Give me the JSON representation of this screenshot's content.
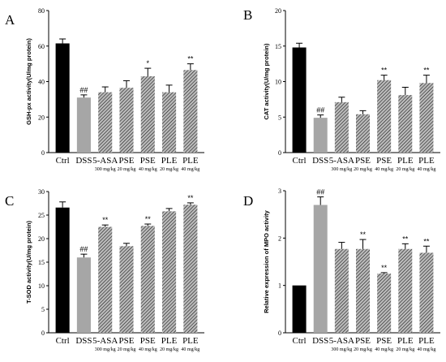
{
  "chart_data": [
    {
      "type": "bar",
      "panel_label": "A",
      "ylabel": "GSH-px activity(U/mg protein)",
      "ylim": [
        0,
        80
      ],
      "yticks": [
        0,
        20,
        40,
        60,
        80
      ],
      "categories": [
        "Ctrl",
        "DSS",
        "5-ASA",
        "PSE",
        "PSE",
        "PLE",
        "PLE"
      ],
      "doses": [
        "",
        "",
        "300 mg/kg",
        "20 mg/kg",
        "40 mg/kg",
        "20 mg/kg",
        "40 mg/kg"
      ],
      "values": [
        61.5,
        31,
        34,
        36.5,
        43,
        34,
        46.5
      ],
      "errors": [
        2.5,
        1.5,
        3,
        4,
        4.5,
        4,
        3.5
      ],
      "significance": [
        "",
        "##",
        "",
        "",
        "*",
        "",
        "**"
      ]
    },
    {
      "type": "bar",
      "panel_label": "B",
      "ylabel": "CAT activity(U/mg protein)",
      "ylim": [
        0,
        20
      ],
      "yticks": [
        0,
        5,
        10,
        15,
        20
      ],
      "categories": [
        "Ctrl",
        "DSS",
        "5-ASA",
        "PSE",
        "PSE",
        "PLE",
        "PLE"
      ],
      "doses": [
        "",
        "",
        "300 mg/kg",
        "20 mg/kg",
        "40 mg/kg",
        "20 mg/kg",
        "40 mg/kg"
      ],
      "values": [
        14.8,
        4.9,
        7.1,
        5.4,
        10.2,
        8.1,
        9.8
      ],
      "errors": [
        0.6,
        0.4,
        0.7,
        0.5,
        0.7,
        1.1,
        1.1
      ],
      "significance": [
        "",
        "##",
        "",
        "",
        "**",
        "",
        "**"
      ]
    },
    {
      "type": "bar",
      "panel_label": "C",
      "ylabel": "T-SOD activity(U/mg protein)",
      "ylim": [
        0,
        30
      ],
      "yticks": [
        0,
        5,
        10,
        15,
        20,
        25,
        30
      ],
      "categories": [
        "Ctrl",
        "DSS",
        "5-ASA",
        "PSE",
        "PSE",
        "PLE",
        "PLE"
      ],
      "doses": [
        "",
        "",
        "300 mg/kg",
        "20 mg/kg",
        "40 mg/kg",
        "20 mg/kg",
        "40 mg/kg"
      ],
      "values": [
        26.6,
        16,
        22.5,
        18.4,
        22.7,
        25.8,
        27.2
      ],
      "errors": [
        1.2,
        0.7,
        0.4,
        0.6,
        0.4,
        0.6,
        0.4
      ],
      "significance": [
        "",
        "##",
        "**",
        "",
        "**",
        "",
        "**"
      ]
    },
    {
      "type": "bar",
      "panel_label": "D",
      "ylabel": "Relative expression of MPO activity",
      "ylim": [
        0,
        3
      ],
      "yticks": [
        0,
        1,
        2,
        3
      ],
      "categories": [
        "Ctrl",
        "DSS",
        "5-ASA",
        "PSE",
        "PSE",
        "PLE",
        "PLE"
      ],
      "doses": [
        "",
        "",
        "300 mg/kg",
        "20 mg/kg",
        "40 mg/kg",
        "20 mg/kg",
        "40 mg/kg"
      ],
      "values": [
        1.0,
        2.7,
        1.77,
        1.77,
        1.25,
        1.77,
        1.69
      ],
      "errors": [
        0,
        0.17,
        0.14,
        0.2,
        0.02,
        0.11,
        0.14
      ],
      "significance": [
        "",
        "##",
        "",
        "**",
        "**",
        "**",
        "**"
      ]
    }
  ],
  "colors": {
    "ctrl": "#000000",
    "dss": "#a6a6a6",
    "hatch_stroke": "#1a1a1a",
    "hatch_bg": "#bcbcbc",
    "axis": "#000000"
  }
}
